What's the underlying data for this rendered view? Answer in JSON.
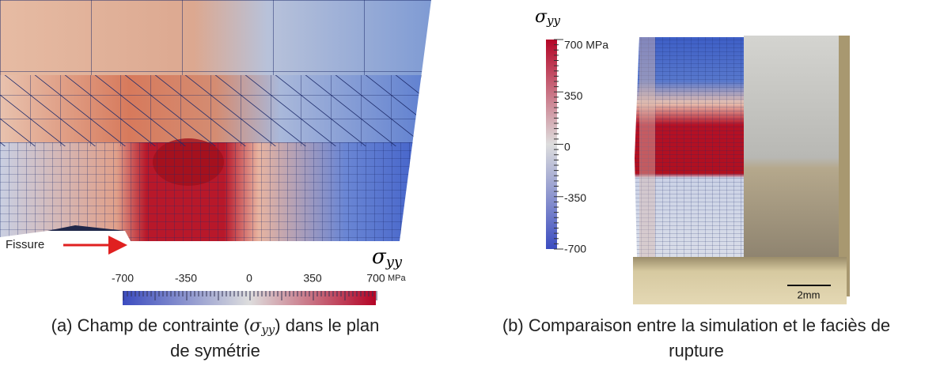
{
  "panel_a": {
    "crack_label": "Fissure",
    "colorbar": {
      "symbol": "σ",
      "subscript": "yy",
      "ticks": [
        "-700",
        "-350",
        "0",
        "350",
        "700"
      ],
      "unit": "MPa"
    },
    "caption": {
      "prefix": "(a) Champ de contrainte (",
      "symbol": "σ",
      "subscript": "yy",
      "suffix": ") dans le plan",
      "line2": "de symétrie"
    }
  },
  "panel_b": {
    "colorbar": {
      "symbol": "σ",
      "subscript": "yy",
      "ticks": [
        "700 MPa",
        "350",
        "0",
        "-350",
        "-700"
      ]
    },
    "scale_bar": "2mm",
    "caption": {
      "line1": "(b) Comparaison entre la simulation et le faciès de",
      "line2": "rupture"
    }
  }
}
